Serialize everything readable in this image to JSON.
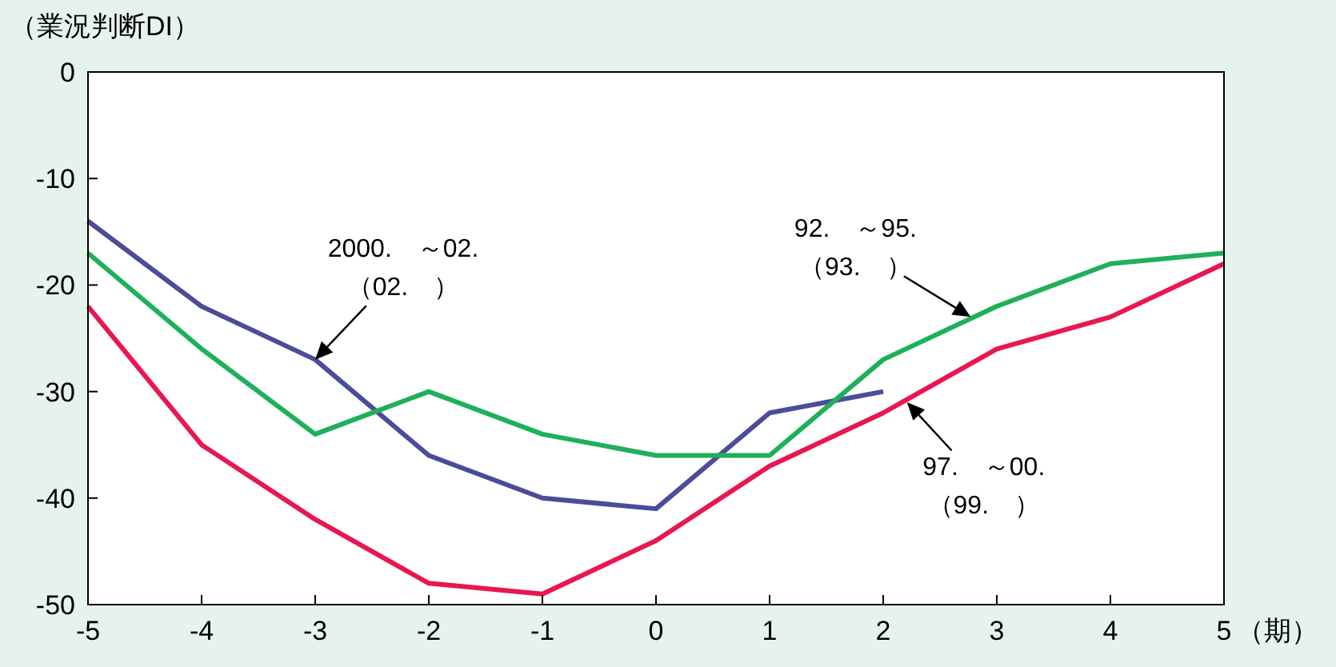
{
  "chart_data": {
    "type": "line",
    "ylabel": "（業況判断DI）",
    "xlabel": "（期）",
    "x": [
      -5,
      -4,
      -3,
      -2,
      -1,
      0,
      1,
      2,
      3,
      4,
      5
    ],
    "xlim": [
      -5,
      5
    ],
    "xticks": [
      -5,
      -4,
      -3,
      -2,
      -1,
      0,
      1,
      2,
      3,
      4,
      5
    ],
    "ylim": [
      -50,
      0
    ],
    "yticks": [
      -50,
      -40,
      -30,
      -20,
      -10,
      0
    ],
    "grid": false,
    "marker": "none",
    "line_style": "solid",
    "series": [
      {
        "color": "#4b4c9a",
        "x": [
          -5,
          -4,
          -3,
          -2,
          -1,
          0,
          1,
          2
        ],
        "values": [
          -14,
          -22,
          -27,
          -36,
          -40,
          -41,
          -32,
          -30
        ]
      },
      {
        "color": "#1fb05a",
        "values": [
          -17,
          -26,
          -34,
          -30,
          -34,
          -36,
          -36,
          -27,
          -22,
          -18,
          -17
        ]
      },
      {
        "color": "#e8174f",
        "values": [
          -22,
          -35,
          -42,
          -48,
          -49,
          -44,
          -37,
          -32,
          -26,
          -23,
          -18
        ]
      }
    ],
    "annotations": [
      {
        "text": "2000.　～02.\n（02.　）",
        "x": -3,
        "y": -27
      },
      {
        "text": "92.　～95.\n（93.　）",
        "x": 2.77,
        "y": -23
      },
      {
        "text": "97.　～00.\n（99.　）",
        "x": 2.21,
        "y": -31
      }
    ]
  }
}
